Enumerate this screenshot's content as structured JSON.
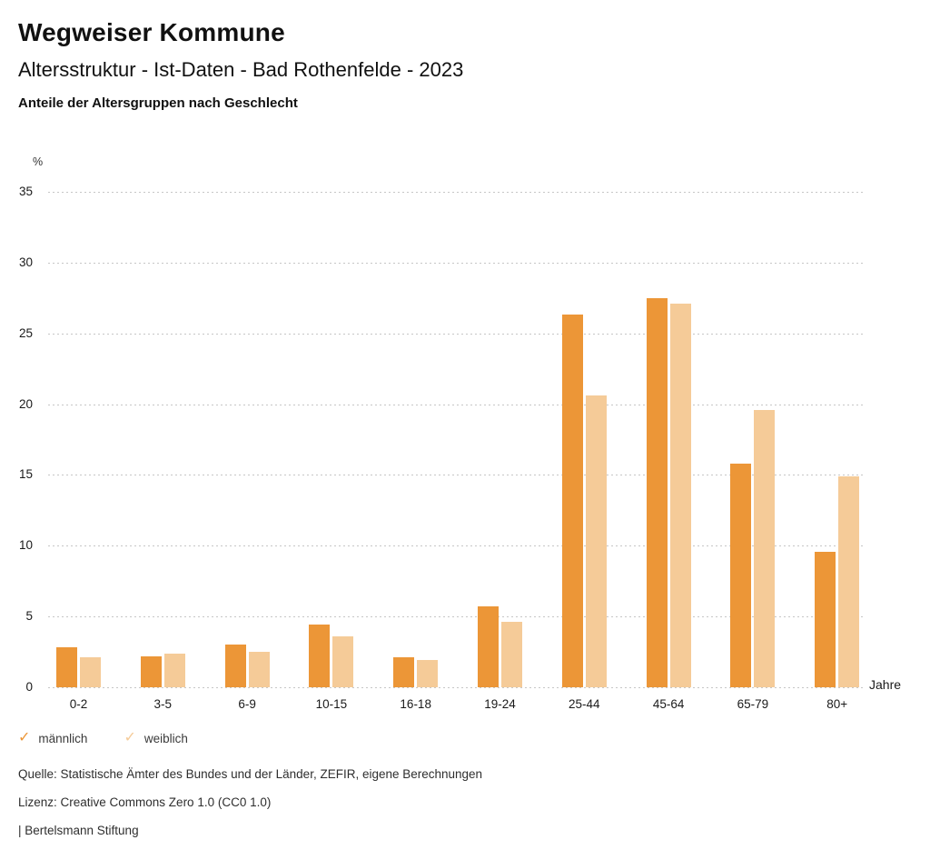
{
  "header": {
    "title": "Wegweiser Kommune",
    "subtitle": "Altersstruktur - Ist-Daten - Bad Rothenfelde - 2023",
    "caption": "Anteile der Altersgruppen nach Geschlecht"
  },
  "chart_data": {
    "type": "bar",
    "title": "Anteile der Altersgruppen nach Geschlecht",
    "categories": [
      "0-2",
      "3-5",
      "6-9",
      "10-15",
      "16-18",
      "19-24",
      "25-44",
      "45-64",
      "65-79",
      "80+"
    ],
    "series": [
      {
        "name": "männlich",
        "color": "#EC9637",
        "values": [
          2.8,
          2.2,
          3.0,
          4.4,
          2.1,
          5.7,
          26.3,
          27.5,
          15.8,
          9.6
        ]
      },
      {
        "name": "weiblich",
        "color": "#F5CB98",
        "values": [
          2.1,
          2.4,
          2.5,
          3.6,
          1.9,
          4.6,
          20.6,
          27.1,
          19.6,
          14.9
        ]
      }
    ],
    "xlabel": "Jahre",
    "ylabel": "%",
    "ylim": [
      0,
      35
    ],
    "yticks": [
      0,
      5,
      10,
      15,
      20,
      25,
      30,
      35
    ],
    "grid": "horizontal-dotted",
    "legend_position": "bottom-left"
  },
  "legend": {
    "items": [
      {
        "label": "männlich",
        "color": "#EC9637",
        "icon": "check-icon"
      },
      {
        "label": "weiblich",
        "color": "#F5CB98",
        "icon": "check-icon"
      }
    ]
  },
  "footer": {
    "source": "Quelle: Statistische Ämter des Bundes und der Länder, ZEFIR, eigene Berechnungen",
    "license": "Lizenz: Creative Commons Zero 1.0 (CC0 1.0)",
    "attribution": "| Bertelsmann Stiftung"
  },
  "colors": {
    "male_bar": "#EC9637",
    "female_bar": "#F5CB98",
    "gridline": "#C6C6C6",
    "text": "#1A1A1A"
  }
}
